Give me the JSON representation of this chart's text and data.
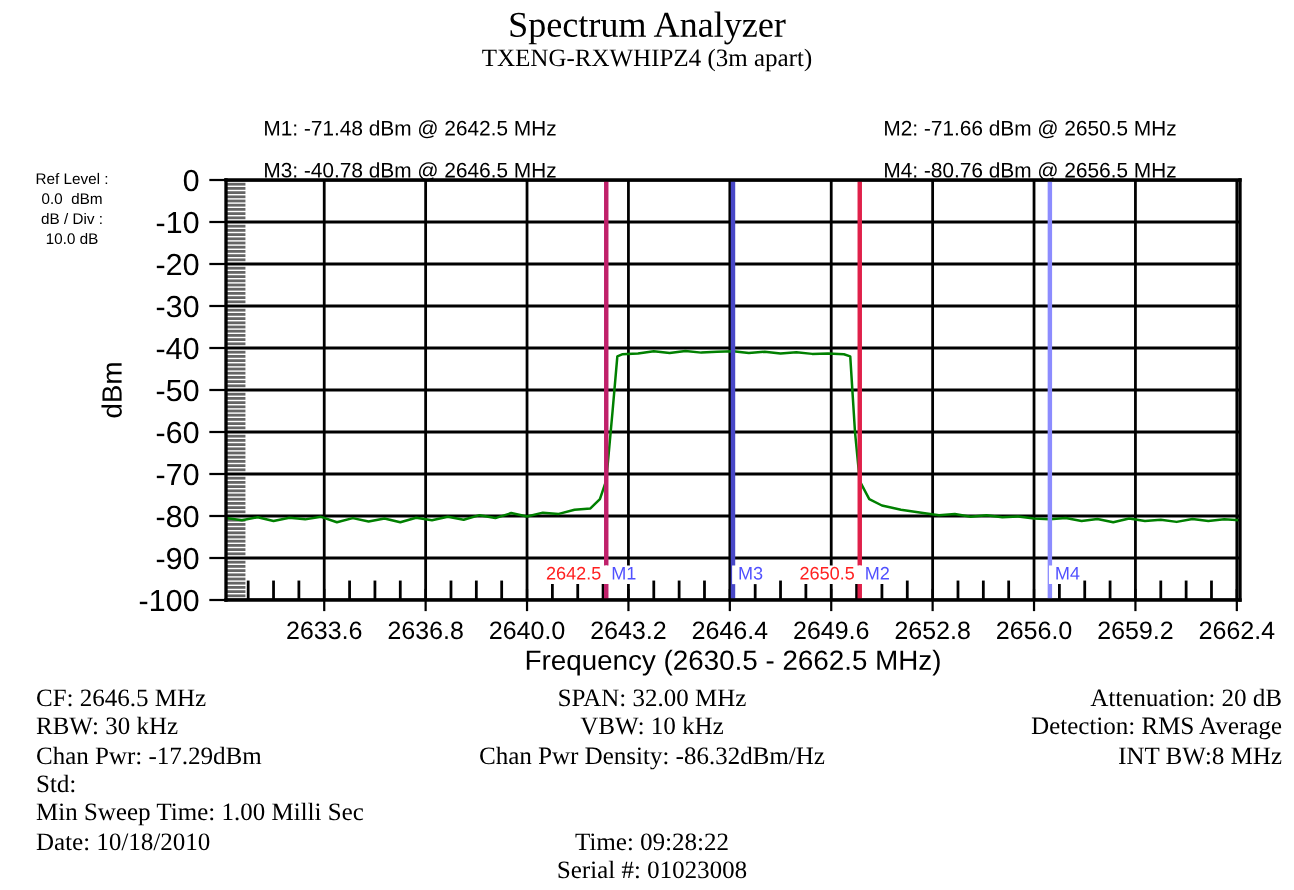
{
  "chart_data": {
    "type": "line",
    "title": "Spectrum Analyzer",
    "subtitle": "TXENG-RXWHIPZ4 (3m apart)",
    "xlabel": "Frequency (2630.5 - 2662.5 MHz)",
    "ylabel": "dBm",
    "x": [
      2630.5,
      2631,
      2631.5,
      2632,
      2632.5,
      2633,
      2633.5,
      2634,
      2634.5,
      2635,
      2635.5,
      2636,
      2636.5,
      2637,
      2637.5,
      2638,
      2638.5,
      2639,
      2639.5,
      2640,
      2640.5,
      2641,
      2641.5,
      2642,
      2642.3,
      2642.5,
      2642.7,
      2642.85,
      2643,
      2643.5,
      2644,
      2644.5,
      2645,
      2645.5,
      2646,
      2646.5,
      2647,
      2647.5,
      2648,
      2648.5,
      2649,
      2649.5,
      2650,
      2650.2,
      2650.35,
      2650.5,
      2650.8,
      2651.2,
      2651.8,
      2652.5,
      2653,
      2653.5,
      2654,
      2654.5,
      2655,
      2655.5,
      2656,
      2656.5,
      2657,
      2657.5,
      2658,
      2658.5,
      2659,
      2659.5,
      2660,
      2660.5,
      2661,
      2661.5,
      2662,
      2662.5
    ],
    "series": [
      {
        "color": "#008000",
        "values": [
          -80.5,
          -81,
          -80.3,
          -81.2,
          -80.4,
          -80.8,
          -80.2,
          -81.5,
          -80.5,
          -81.3,
          -80.6,
          -81.5,
          -80.4,
          -81,
          -80.2,
          -80.9,
          -79.8,
          -80.5,
          -79.3,
          -80.1,
          -79.2,
          -79.5,
          -78.5,
          -78.2,
          -76,
          -71.5,
          -55,
          -42,
          -41.5,
          -41.3,
          -40.8,
          -41.2,
          -40.7,
          -41.1,
          -40.9,
          -40.8,
          -41.2,
          -40.9,
          -41.3,
          -41,
          -41.4,
          -41.3,
          -41.5,
          -42,
          -60,
          -71.7,
          -76,
          -77.5,
          -78.5,
          -79.3,
          -79.8,
          -79.5,
          -80.2,
          -79.8,
          -80.3,
          -80.1,
          -80.6,
          -80.8,
          -80.5,
          -81.2,
          -80.7,
          -81.5,
          -80.6,
          -81.2,
          -80.9,
          -81.4,
          -80.7,
          -81.2,
          -80.8,
          -81
        ]
      }
    ],
    "xlim": [
      2630.5,
      2662.5
    ],
    "xticks": [
      2633.6,
      2636.8,
      {
        "value": 2640.0,
        "label": "2640.0"
      },
      2643.2,
      2646.4,
      2649.6,
      2652.8,
      {
        "value": 2656.0,
        "label": "2656.0"
      },
      2659.2,
      2662.4
    ],
    "ylim": [
      -100,
      0
    ],
    "yticks": [
      -100,
      -90,
      -80,
      -70,
      -60,
      -50,
      -40,
      -30,
      -20,
      -10,
      0
    ],
    "grid": true,
    "marker": "none",
    "line_style": "solid",
    "ref_lines": [
      {
        "axis": "x",
        "value": 2642.5,
        "label": "M1",
        "color": "#c0206a"
      },
      {
        "axis": "x",
        "value": 2646.5,
        "label": "M3",
        "color": "#4848c8"
      },
      {
        "axis": "x",
        "value": 2650.5,
        "label": "M2",
        "color": "#e0204a"
      },
      {
        "axis": "x",
        "value": 2656.5,
        "label": "M4",
        "color": "#8c8cff"
      }
    ],
    "annotations": [
      "M1: -71.48 dBm @ 2642.5 MHz",
      "M2: -71.66 dBm @ 2650.5 MHz",
      "M3: -40.78 dBm @ 2646.5 MHz",
      "M4: -80.76 dBm @ 2656.5 MHz",
      "Ref Level :",
      "0.0  dBm",
      "dB / Div :",
      "10.0 dB",
      {
        "text": "2642.5",
        "x": 2642.5,
        "y": -94
      },
      {
        "text": "2650.5",
        "x": 2650.5,
        "y": -94
      },
      "CF: 2646.5 MHz",
      "SPAN: 32.00 MHz",
      "Attenuation: 20 dB",
      "RBW: 30 kHz",
      "VBW: 10 kHz",
      "Detection: RMS Average",
      "Chan Pwr: -17.29dBm",
      "Chan Pwr Density: -86.32dBm/Hz",
      "INT BW:8 MHz",
      "Std:",
      "Min Sweep Time: 1.00 Milli Sec",
      "Date: 10/18/2010",
      "Time: 09:28:22",
      "Serial #: 01023008"
    ]
  }
}
